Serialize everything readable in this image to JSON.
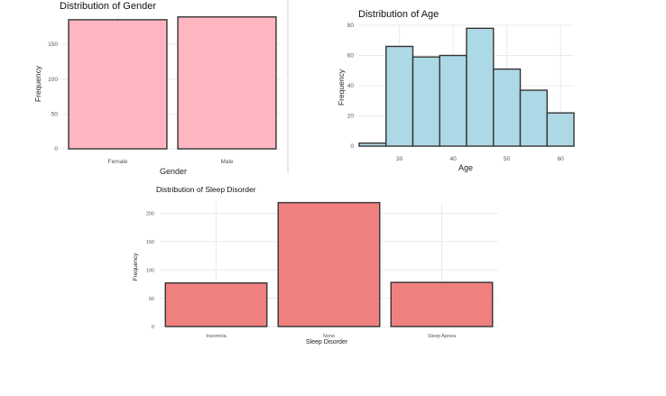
{
  "chart_data": [
    {
      "type": "bar",
      "title": "Distribution of Gender",
      "xlabel": "Gender",
      "ylabel": "Frequency",
      "categories": [
        "Female",
        "Male"
      ],
      "values": [
        185,
        189
      ],
      "ylim": [
        0,
        190
      ],
      "yticks": [
        0,
        50,
        100,
        150
      ],
      "fill": "#ffb6c1",
      "grid": true,
      "legend": "none"
    },
    {
      "type": "bar",
      "title": "Distribution of Age",
      "xlabel": "Age",
      "ylabel": "Frequency",
      "bins": [
        [
          22.5,
          27.5
        ],
        [
          27.5,
          32.5
        ],
        [
          32.5,
          37.5
        ],
        [
          37.5,
          42.5
        ],
        [
          42.5,
          47.5
        ],
        [
          47.5,
          52.5
        ],
        [
          52.5,
          57.5
        ],
        [
          57.5,
          62.5
        ]
      ],
      "values": [
        2,
        66,
        59,
        60,
        78,
        51,
        37,
        22
      ],
      "xlim": [
        22.5,
        62.5
      ],
      "ylim": [
        0,
        80
      ],
      "xticks": [
        30,
        40,
        50,
        60
      ],
      "yticks": [
        0,
        20,
        40,
        60,
        80
      ],
      "fill": "#add8e6",
      "grid": true,
      "legend": "none"
    },
    {
      "type": "bar",
      "title": "Distribution of Sleep Disorder",
      "xlabel": "Sleep Disorder",
      "ylabel": "Frequency",
      "categories": [
        "Insomnia",
        "None",
        "Sleep Apnea"
      ],
      "values": [
        77,
        219,
        78
      ],
      "ylim": [
        0,
        220
      ],
      "yticks": [
        0,
        50,
        100,
        150,
        200
      ],
      "fill": "#f08080",
      "grid": true,
      "legend": "none"
    }
  ]
}
